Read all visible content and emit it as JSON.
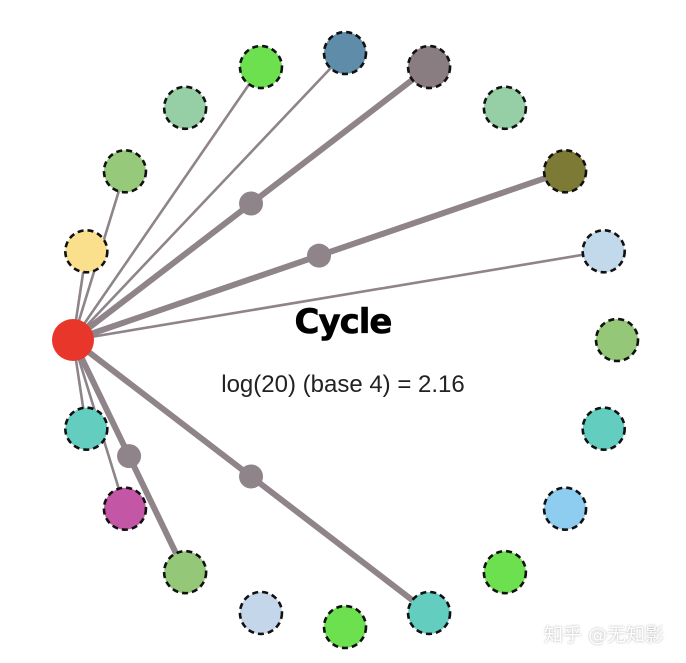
{
  "title": "Cycle",
  "subtitle": "log(20) (base 4) = 2.16",
  "watermark": "知乎 @无知影",
  "colors": {
    "source_node": "#e8372a",
    "edge": "#8e8489",
    "node_border": "#111111"
  },
  "nodes": [
    {
      "id": "n0",
      "color": "#e8372a"
    },
    {
      "id": "n1",
      "color": "#fae08c"
    },
    {
      "id": "n2",
      "color": "#97c97a"
    },
    {
      "id": "n3",
      "color": "#96cfa5"
    },
    {
      "id": "n4",
      "color": "#6ce04e"
    },
    {
      "id": "n5",
      "color": "#5f8ca8"
    },
    {
      "id": "n6",
      "color": "#8a7d82"
    },
    {
      "id": "n7",
      "color": "#96cfa5"
    },
    {
      "id": "n8",
      "color": "#7d7a36"
    },
    {
      "id": "n9",
      "color": "#c1d9ea"
    },
    {
      "id": "n10",
      "color": "#94c777"
    },
    {
      "id": "n11",
      "color": "#63cdc0"
    },
    {
      "id": "n12",
      "color": "#8ecdef"
    },
    {
      "id": "n13",
      "color": "#6ce04e"
    },
    {
      "id": "n14",
      "color": "#63cdc0"
    },
    {
      "id": "n15",
      "color": "#6ce04e"
    },
    {
      "id": "n16",
      "color": "#c4d7ea"
    },
    {
      "id": "n17",
      "color": "#94c777"
    },
    {
      "id": "n18",
      "color": "#c357a6"
    },
    {
      "id": "n19",
      "color": "#63cdc0"
    }
  ],
  "edges": [
    {
      "from": "n0",
      "to": "n1",
      "weight": "thin",
      "midpoint": false
    },
    {
      "from": "n0",
      "to": "n2",
      "weight": "thin",
      "midpoint": false
    },
    {
      "from": "n0",
      "to": "n4",
      "weight": "thin",
      "midpoint": false
    },
    {
      "from": "n0",
      "to": "n5",
      "weight": "thin",
      "midpoint": false
    },
    {
      "from": "n0",
      "to": "n6",
      "weight": "thick",
      "midpoint": true
    },
    {
      "from": "n0",
      "to": "n8",
      "weight": "thick",
      "midpoint": true
    },
    {
      "from": "n0",
      "to": "n9",
      "weight": "thin",
      "midpoint": false
    },
    {
      "from": "n0",
      "to": "n14",
      "weight": "thick",
      "midpoint": true
    },
    {
      "from": "n0",
      "to": "n17",
      "weight": "thick",
      "midpoint": true
    },
    {
      "from": "n0",
      "to": "n18",
      "weight": "thin",
      "midpoint": false
    },
    {
      "from": "n0",
      "to": "n19",
      "weight": "thin",
      "midpoint": false
    }
  ]
}
